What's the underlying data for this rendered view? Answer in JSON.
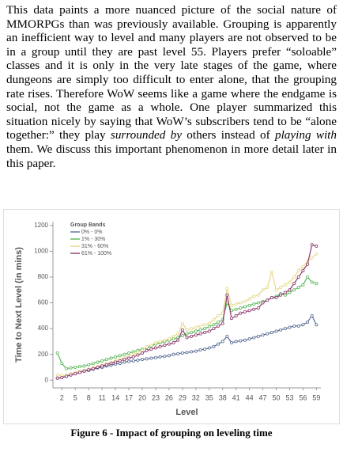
{
  "paragraph": [
    {
      "text": "This data paints a more nuanced picture of the social nature of MMORPGs than was previously available. Grouping is apparently an inefficient way to level and many players are not observed to be in a group until they are past level 55. Players prefer “soloable” classes and it is only in the very late stages of the game, where dungeons are simply too difficult to enter alone, that the grouping rate rises. Therefore WoW seems like a game where the endgame is social, not the game as a whole. One player summarized this situation nicely by saying that WoW’s subscribers tend to be “alone together:” they play ",
      "italic": false
    },
    {
      "text": "surrounded by",
      "italic": true
    },
    {
      "text": " others instead of ",
      "italic": false
    },
    {
      "text": "playing with",
      "italic": true
    },
    {
      "text": " them. We discuss this important phenomenon in more detail later in this paper.",
      "italic": false
    }
  ],
  "chart_data": {
    "type": "line",
    "x_label": "Level",
    "y_label": "Time to Next Level (in mins)",
    "legend_title": "Group Bands",
    "legend": "upper-left",
    "x": [
      1,
      2,
      3,
      4,
      5,
      6,
      7,
      8,
      9,
      10,
      11,
      12,
      13,
      14,
      15,
      16,
      17,
      18,
      19,
      20,
      21,
      22,
      23,
      24,
      25,
      26,
      27,
      28,
      29,
      30,
      31,
      32,
      33,
      34,
      35,
      36,
      37,
      38,
      39,
      40,
      41,
      42,
      43,
      44,
      45,
      46,
      47,
      48,
      49,
      50,
      51,
      52,
      53,
      54,
      55,
      56,
      57,
      58,
      59
    ],
    "xlim": [
      0,
      60
    ],
    "xticks": [
      2,
      5,
      8,
      11,
      14,
      17,
      20,
      23,
      26,
      29,
      32,
      35,
      38,
      41,
      44,
      47,
      50,
      53,
      56,
      59
    ],
    "ylim": [
      -60,
      1230
    ],
    "yticks": [
      0,
      200,
      400,
      600,
      800,
      1000,
      1200
    ],
    "series": [
      {
        "name": "0% - 0%",
        "color": "#5b6d96",
        "values": [
          15,
          20,
          30,
          40,
          50,
          60,
          70,
          75,
          85,
          95,
          100,
          110,
          115,
          125,
          130,
          140,
          145,
          150,
          155,
          160,
          165,
          170,
          175,
          180,
          185,
          190,
          200,
          205,
          210,
          215,
          220,
          225,
          235,
          240,
          250,
          260,
          280,
          300,
          340,
          290,
          300,
          305,
          310,
          320,
          330,
          340,
          350,
          360,
          370,
          380,
          390,
          400,
          410,
          420,
          420,
          430,
          450,
          500,
          430
        ]
      },
      {
        "name": "1% - 30%",
        "color": "#5cb85c",
        "values": [
          210,
          130,
          90,
          95,
          100,
          105,
          110,
          120,
          130,
          140,
          150,
          160,
          170,
          180,
          190,
          200,
          210,
          220,
          230,
          240,
          250,
          265,
          280,
          290,
          300,
          310,
          320,
          330,
          345,
          360,
          370,
          380,
          390,
          400,
          415,
          430,
          450,
          470,
          600,
          540,
          550,
          560,
          570,
          580,
          590,
          600,
          610,
          620,
          640,
          650,
          670,
          660,
          680,
          700,
          720,
          740,
          800,
          760,
          750
        ]
      },
      {
        "name": "31% - 60%",
        "color": "#e6d98c",
        "values": [
          40,
          35,
          40,
          50,
          60,
          70,
          75,
          85,
          95,
          105,
          115,
          125,
          135,
          150,
          160,
          175,
          185,
          200,
          215,
          230,
          260,
          270,
          290,
          300,
          310,
          320,
          340,
          360,
          440,
          390,
          400,
          410,
          420,
          430,
          440,
          470,
          500,
          520,
          710,
          580,
          590,
          600,
          610,
          630,
          650,
          660,
          700,
          720,
          840,
          700,
          720,
          740,
          760,
          800,
          850,
          880,
          920,
          950,
          980
        ]
      },
      {
        "name": "61% - 100%",
        "color": "#8e3a6e",
        "values": [
          15,
          20,
          30,
          40,
          50,
          60,
          70,
          80,
          90,
          100,
          110,
          120,
          130,
          140,
          150,
          160,
          170,
          180,
          195,
          210,
          230,
          240,
          250,
          260,
          270,
          280,
          290,
          310,
          390,
          330,
          340,
          350,
          360,
          370,
          380,
          400,
          420,
          440,
          660,
          480,
          500,
          520,
          530,
          540,
          550,
          560,
          600,
          620,
          640,
          640,
          660,
          680,
          700,
          750,
          800,
          850,
          900,
          1050,
          1040
        ]
      }
    ]
  },
  "caption": "Figure 6 - Impact of grouping on leveling time"
}
